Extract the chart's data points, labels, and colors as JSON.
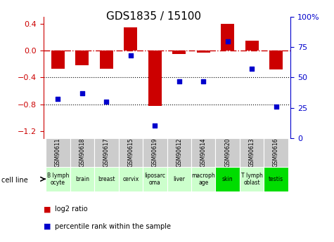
{
  "title": "GDS1835 / 15100",
  "gsm_labels": [
    "GSM90611",
    "GSM90618",
    "GSM90617",
    "GSM90615",
    "GSM90619",
    "GSM90612",
    "GSM90614",
    "GSM90620",
    "GSM90613",
    "GSM90616"
  ],
  "cell_lines": [
    "B lymph\nocyte",
    "brain",
    "breast",
    "cervix",
    "liposarc\noma",
    "liver",
    "macroph\nage",
    "skin",
    "T lymph\noblast",
    "testis"
  ],
  "cell_line_colors": [
    "#ccffcc",
    "#ccffcc",
    "#ccffcc",
    "#ccffcc",
    "#ccffcc",
    "#ccffcc",
    "#ccffcc",
    "#00dd00",
    "#ccffcc",
    "#00dd00"
  ],
  "log2_ratio": [
    -0.27,
    -0.22,
    -0.27,
    0.35,
    -0.82,
    -0.05,
    -0.03,
    0.4,
    0.15,
    -0.28
  ],
  "percentile_rank": [
    32,
    37,
    30,
    68,
    10,
    47,
    47,
    80,
    57,
    26
  ],
  "bar_color": "#cc0000",
  "dot_color": "#0000cc",
  "left_ylim": [
    -1.3,
    0.5
  ],
  "right_ylim": [
    0,
    100
  ],
  "left_yticks": [
    -1.2,
    -0.8,
    -0.4,
    0.0,
    0.4
  ],
  "right_yticks": [
    0,
    25,
    50,
    75,
    100
  ],
  "right_yticklabels": [
    "0",
    "25",
    "50",
    "75",
    "100%"
  ],
  "dotted_lines": [
    -0.4,
    -0.8
  ],
  "gsm_row_color": "#cccccc"
}
